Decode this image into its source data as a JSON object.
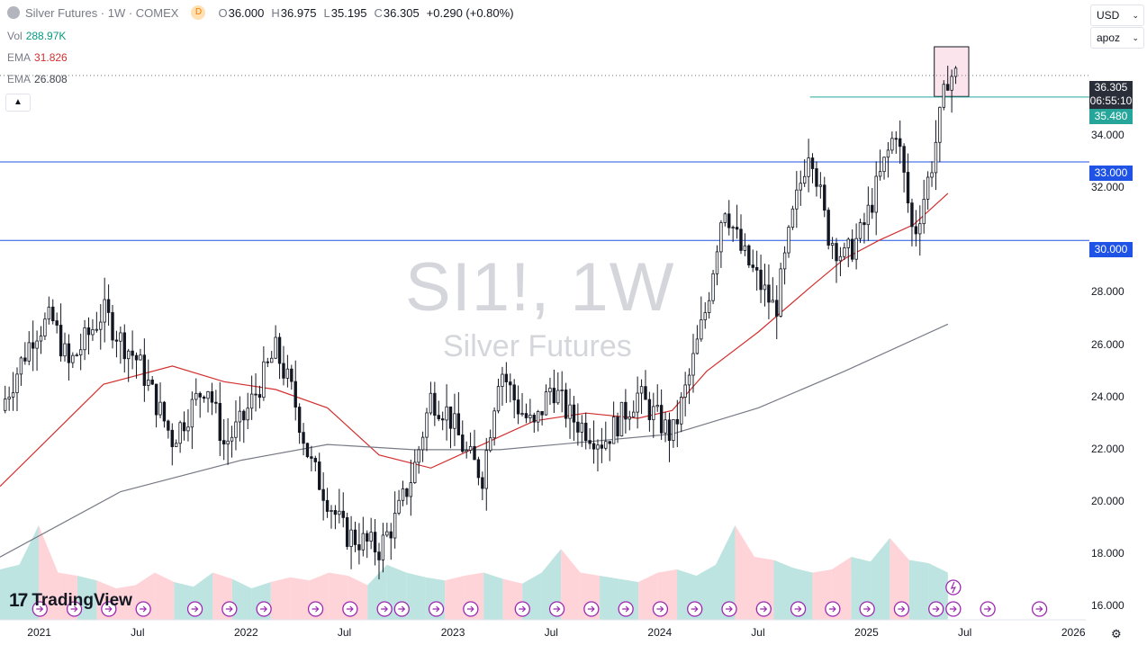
{
  "header": {
    "title": "Silver Futures · 1W · COMEX",
    "badge": "D",
    "open_label": "O",
    "open": "36.000",
    "high_label": "H",
    "high": "36.975",
    "low_label": "L",
    "low": "35.195",
    "close_label": "C",
    "close": "36.305",
    "change": "+0.290 (+0.80%)"
  },
  "indicators": [
    {
      "name": "Vol",
      "value": "288.97K"
    },
    {
      "name": "EMA",
      "value": "31.826"
    },
    {
      "name": "EMA",
      "value": "26.808"
    }
  ],
  "controls": {
    "currency": "USD",
    "scale": "apoz"
  },
  "watermark": {
    "symbol": "SI1!, 1W",
    "name": "Silver Futures"
  },
  "price_axis": {
    "ticks": [
      "34.000",
      "32.000",
      "28.000",
      "26.000",
      "24.000",
      "22.000",
      "20.000",
      "18.000",
      "16.000"
    ],
    "current_price": "36.305",
    "countdown": "06:55:10",
    "line_labels": {
      "upper": "35.480",
      "mid": "33.000",
      "low": "30.000"
    }
  },
  "time_axis": [
    "2021",
    "Jul",
    "2022",
    "Jul",
    "2023",
    "Jul",
    "2024",
    "Jul",
    "2025",
    "Jul",
    "2026"
  ],
  "logo": {
    "text": "TradingView",
    "mark": "17"
  },
  "colors": {
    "up": "#089981",
    "down": "#f23645",
    "ema_fast": "#d32f2f",
    "ema_slow": "#787b86",
    "hline": "#1e53e5",
    "resistance": "#26a69a",
    "box_fill": "#f8bbd0",
    "current_line": "#787b86",
    "label_dark": "#2a2e39",
    "event": "#9c27b0"
  },
  "chart_data": {
    "type": "candlestick",
    "symbol": "SI1!",
    "timeframe": "1W",
    "ylim": [
      15.5,
      38.5
    ],
    "x_range": [
      "2020-11",
      "2026-02"
    ],
    "horizontal_lines": [
      30.0,
      33.0
    ],
    "resistance_line": 35.48,
    "highlight_box": {
      "x": [
        "2025-05",
        "2025-07"
      ],
      "y": [
        35.5,
        37.4
      ]
    },
    "ema_fast_path": [
      [
        "2020-11",
        20.6
      ],
      [
        "2021-05",
        24.5
      ],
      [
        "2021-09",
        25.2
      ],
      [
        "2021-12",
        24.6
      ],
      [
        "2022-03",
        24.3
      ],
      [
        "2022-06",
        23.6
      ],
      [
        "2022-09",
        21.8
      ],
      [
        "2022-12",
        21.3
      ],
      [
        "2023-03",
        22.2
      ],
      [
        "2023-06",
        23.1
      ],
      [
        "2023-09",
        23.4
      ],
      [
        "2023-12",
        23.2
      ],
      [
        "2024-02",
        23.5
      ],
      [
        "2024-04",
        25.0
      ],
      [
        "2024-07",
        26.5
      ],
      [
        "2024-10",
        28.2
      ],
      [
        "2024-12",
        29.3
      ],
      [
        "2025-02",
        30.0
      ],
      [
        "2025-04",
        30.6
      ],
      [
        "2025-06",
        31.8
      ]
    ],
    "ema_slow_path": [
      [
        "2020-11",
        17.9
      ],
      [
        "2021-06",
        20.4
      ],
      [
        "2022-01",
        21.6
      ],
      [
        "2022-06",
        22.2
      ],
      [
        "2022-11",
        22.0
      ],
      [
        "2023-04",
        22.0
      ],
      [
        "2023-09",
        22.3
      ],
      [
        "2024-02",
        22.6
      ],
      [
        "2024-07",
        23.6
      ],
      [
        "2024-12",
        25.0
      ],
      [
        "2025-06",
        26.8
      ]
    ],
    "price_path": [
      [
        "2020-11",
        23.5
      ],
      [
        "2021-01",
        26.5
      ],
      [
        "2021-02",
        27.0
      ],
      [
        "2021-03",
        25.2
      ],
      [
        "2021-05",
        27.3
      ],
      [
        "2021-06",
        26.2
      ],
      [
        "2021-07",
        25.4
      ],
      [
        "2021-09",
        22.4
      ],
      [
        "2021-11",
        24.6
      ],
      [
        "2021-12",
        22.2
      ],
      [
        "2022-01",
        23.0
      ],
      [
        "2022-03",
        25.8
      ],
      [
        "2022-04",
        24.1
      ],
      [
        "2022-05",
        21.5
      ],
      [
        "2022-07",
        18.8
      ],
      [
        "2022-09",
        18.2
      ],
      [
        "2022-10",
        19.4
      ],
      [
        "2022-11",
        21.2
      ],
      [
        "2022-12",
        24.0
      ],
      [
        "2023-01",
        23.4
      ],
      [
        "2023-02",
        21.9
      ],
      [
        "2023-03",
        21.0
      ],
      [
        "2023-04",
        25.2
      ],
      [
        "2023-05",
        23.7
      ],
      [
        "2023-06",
        22.8
      ],
      [
        "2023-07",
        24.5
      ],
      [
        "2023-08",
        23.3
      ],
      [
        "2023-10",
        22.3
      ],
      [
        "2023-12",
        24.1
      ],
      [
        "2024-02",
        22.5
      ],
      [
        "2024-03",
        24.8
      ],
      [
        "2024-04",
        27.5
      ],
      [
        "2024-05",
        31.5
      ],
      [
        "2024-06",
        29.6
      ],
      [
        "2024-08",
        27.3
      ],
      [
        "2024-09",
        30.9
      ],
      [
        "2024-10",
        33.8
      ],
      [
        "2024-11",
        30.3
      ],
      [
        "2024-12",
        29.3
      ],
      [
        "2025-01",
        30.3
      ],
      [
        "2025-02",
        32.3
      ],
      [
        "2025-03",
        34.3
      ],
      [
        "2025-04",
        30.1
      ],
      [
        "2025-05",
        32.7
      ],
      [
        "2025-06",
        36.3
      ]
    ],
    "volume_profile": {
      "max": 1.0,
      "values": [
        0.32,
        0.35,
        0.6,
        0.3,
        0.28,
        0.25,
        0.2,
        0.22,
        0.3,
        0.24,
        0.21,
        0.3,
        0.26,
        0.2,
        0.24,
        0.27,
        0.25,
        0.3,
        0.28,
        0.22,
        0.35,
        0.3,
        0.27,
        0.25,
        0.28,
        0.3,
        0.26,
        0.23,
        0.3,
        0.45,
        0.3,
        0.28,
        0.26,
        0.24,
        0.3,
        0.32,
        0.28,
        0.35,
        0.6,
        0.4,
        0.38,
        0.33,
        0.3,
        0.32,
        0.4,
        0.37,
        0.52,
        0.38,
        0.36,
        0.3
      ]
    },
    "event_markers": [
      "2021-01",
      "2021-03",
      "2021-05",
      "2021-07",
      "2021-10",
      "2021-12",
      "2022-02",
      "2022-05",
      "2022-07",
      "2022-09",
      "2022-10",
      "2022-12",
      "2023-02",
      "2023-05",
      "2023-07",
      "2023-09",
      "2023-11",
      "2024-01",
      "2024-03",
      "2024-05",
      "2024-07",
      "2024-09",
      "2024-11",
      "2025-01",
      "2025-03",
      "2025-05",
      "2025-06",
      "2025-08",
      "2025-11"
    ]
  }
}
